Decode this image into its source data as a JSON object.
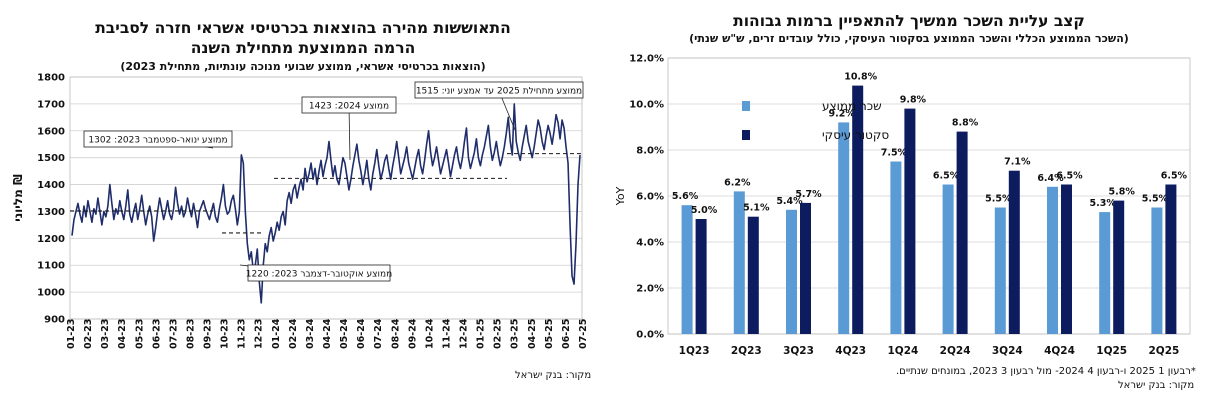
{
  "chart_data": [
    {
      "type": "line",
      "title_line1": "התאוששות מהירה בהוצאות בכרטיסי אשראי חזרה לסביבת",
      "title_line2": "הרמה הממוצעת מתחילת השנה",
      "subtitle": "(הוצאות בכרטיסי אשראי, ממוצע שבועי מנוכה עונתיות, מתחילת 2023)",
      "ylabel": "מליוני ₪",
      "ylim": [
        900,
        1800
      ],
      "yticks": [
        900,
        1000,
        1100,
        1200,
        1300,
        1400,
        1500,
        1600,
        1700,
        1800
      ],
      "grid": true,
      "xticks": [
        "01-23",
        "02-23",
        "03-23",
        "04-23",
        "05-23",
        "06-23",
        "07-23",
        "08-23",
        "09-23",
        "10-23",
        "11-23",
        "12-23",
        "01-24",
        "02-24",
        "03-24",
        "04-24",
        "05-24",
        "06-24",
        "07-24",
        "08-24",
        "09-24",
        "10-24",
        "11-24",
        "12-24",
        "01-25",
        "02-25",
        "03-25",
        "04-25",
        "05-25",
        "06-25",
        "07-25"
      ],
      "series_color": "#1f2d6b",
      "series": [
        {
          "values": [
            1210,
            1270,
            1300,
            1330,
            1290,
            1260,
            1320,
            1280,
            1340,
            1300,
            1260,
            1310,
            1290,
            1350,
            1300,
            1250,
            1300,
            1280,
            1320,
            1400,
            1330,
            1270,
            1310,
            1290,
            1340,
            1300,
            1270,
            1320,
            1380,
            1290,
            1260,
            1300,
            1330,
            1270,
            1310,
            1360,
            1300,
            1250,
            1290,
            1320,
            1280,
            1190,
            1240,
            1300,
            1350,
            1310,
            1270,
            1300,
            1340,
            1290,
            1270,
            1310,
            1390,
            1330,
            1290,
            1320,
            1280,
            1300,
            1350,
            1310,
            1280,
            1330,
            1290,
            1240,
            1300,
            1320,
            1340,
            1310,
            1290,
            1270,
            1300,
            1330,
            1280,
            1260,
            1310,
            1350,
            1400,
            1320,
            1290,
            1300,
            1340,
            1360,
            1310,
            1250,
            1300,
            1510,
            1480,
            1300,
            1180,
            1120,
            1150,
            1080,
            1100,
            1160,
            1040,
            960,
            1100,
            1180,
            1150,
            1210,
            1240,
            1190,
            1220,
            1260,
            1230,
            1280,
            1300,
            1250,
            1340,
            1370,
            1330,
            1380,
            1400,
            1350,
            1390,
            1420,
            1380,
            1460,
            1410,
            1440,
            1480,
            1420,
            1460,
            1400,
            1450,
            1490,
            1430,
            1470,
            1500,
            1560,
            1490,
            1430,
            1470,
            1420,
            1400,
            1450,
            1500,
            1480,
            1430,
            1380,
            1420,
            1470,
            1510,
            1550,
            1490,
            1450,
            1400,
            1440,
            1490,
            1420,
            1380,
            1440,
            1480,
            1530,
            1470,
            1420,
            1450,
            1490,
            1510,
            1460,
            1420,
            1470,
            1510,
            1560,
            1500,
            1440,
            1470,
            1500,
            1540,
            1480,
            1450,
            1420,
            1460,
            1500,
            1530,
            1470,
            1440,
            1490,
            1550,
            1600,
            1520,
            1470,
            1500,
            1540,
            1490,
            1440,
            1470,
            1500,
            1530,
            1480,
            1430,
            1470,
            1510,
            1540,
            1490,
            1460,
            1500,
            1560,
            1610,
            1500,
            1460,
            1490,
            1520,
            1570,
            1500,
            1470,
            1510,
            1540,
            1580,
            1620,
            1540,
            1490,
            1520,
            1560,
            1510,
            1470,
            1500,
            1540,
            1590,
            1650,
            1560,
            1510,
            1700,
            1560,
            1520,
            1490,
            1540,
            1580,
            1620,
            1560,
            1530,
            1500,
            1540,
            1590,
            1640,
            1610,
            1560,
            1530,
            1580,
            1620,
            1590,
            1550,
            1600,
            1660,
            1630,
            1570,
            1640,
            1610,
            1540,
            1480,
            1250,
            1060,
            1030,
            1180,
            1400,
            1510
          ]
        }
      ],
      "annotations": [
        {
          "text": "ממוצע ינואר-ספטמבר 2023: 1302",
          "value": 1302
        },
        {
          "text": "ממוצע אוקטובר-דצמבר 2023: 1220",
          "value": 1220
        },
        {
          "text": "ממוצע 2024: 1423",
          "value": 1423
        },
        {
          "text": "ממוצע מתחילת 2025 עד אמצע יוני: 1515",
          "value": 1515
        }
      ],
      "source": "מקור: בנק ישראל"
    },
    {
      "type": "bar",
      "title": "קצב עליית השכר ממשיך להתאפיין ברמות גבוהות",
      "subtitle": "(השכר הממוצע הכללי והשכר הממוצע בסקטור העיסקי, כולל עובדים זרים, ש\"ש שנתי)",
      "ylabel": "YoY",
      "ylim": [
        0,
        12
      ],
      "yticks": [
        "0.0%",
        "2.0%",
        "4.0%",
        "6.0%",
        "8.0%",
        "10.0%",
        "12.0%"
      ],
      "grid": true,
      "legend_position": "top-left",
      "categories": [
        "1Q23",
        "2Q23",
        "3Q23",
        "4Q23",
        "1Q24",
        "2Q24",
        "3Q24",
        "4Q24",
        "1Q25",
        "2Q25"
      ],
      "series": [
        {
          "name": "שכר ממוצע",
          "color": "#5b9bd5",
          "values": [
            5.6,
            6.2,
            5.4,
            9.2,
            7.5,
            6.5,
            5.5,
            6.4,
            5.3,
            5.5
          ],
          "labels": [
            "5.6%",
            "6.2%",
            "5.4%",
            "9.2%",
            "7.5%",
            "6.5%",
            "5.5%",
            "6.4%",
            "5.3%",
            "5.5%"
          ]
        },
        {
          "name": "סקטור עיסקי",
          "color": "#0d1c5e",
          "values": [
            5.0,
            5.1,
            5.7,
            10.8,
            9.8,
            8.8,
            7.1,
            6.5,
            5.8,
            6.5
          ],
          "labels": [
            "5.0%",
            "5.1%",
            "5.7%",
            "10.8%",
            "9.8%",
            "8.8%",
            "7.1%",
            "6.5%",
            "5.8%",
            "6.5%"
          ]
        }
      ],
      "footnote": "*רבעון 1 2025 ו-רבעון 4 2024- מול רבעון 3 2023, במונחים שנתיים.",
      "source": "מקור: בנק ישראל"
    }
  ]
}
